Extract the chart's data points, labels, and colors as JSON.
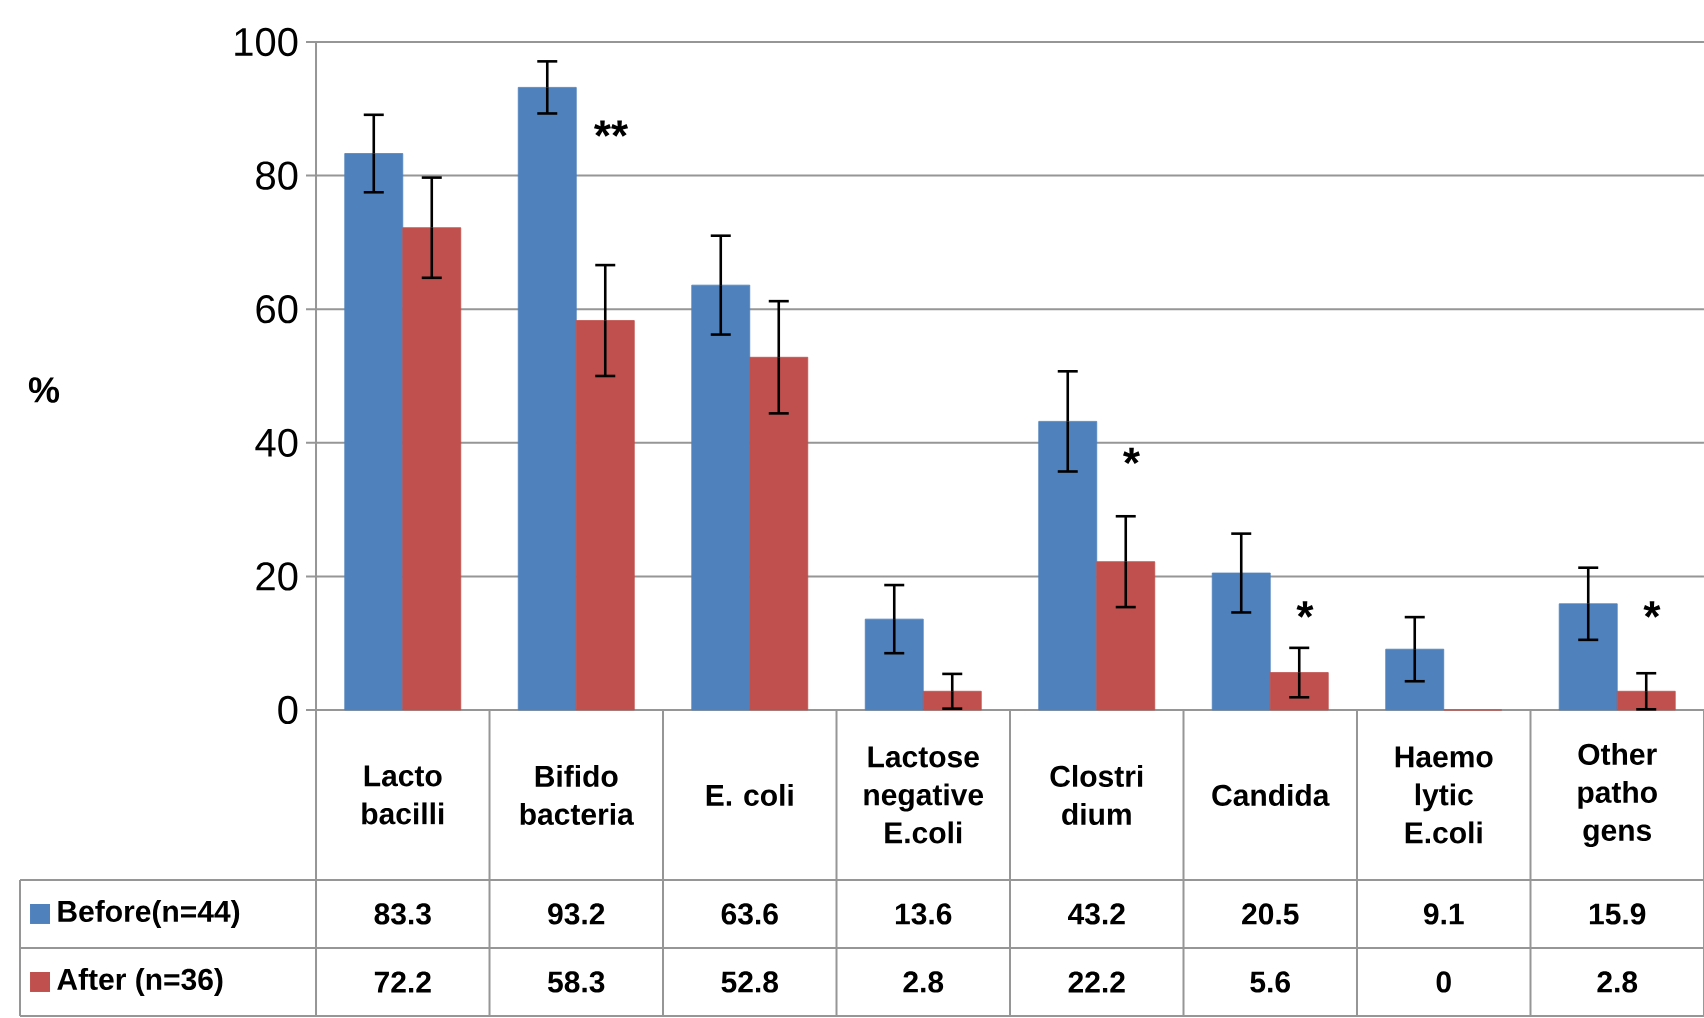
{
  "chart_data": {
    "type": "bar",
    "ylabel": "%",
    "categories": [
      "Lacto bacilli",
      "Bifido bacteria",
      "E. coli",
      "Lactose negative E.coli",
      "Clostri dium",
      "Candida",
      "Haemo lytic E.coli",
      "Other patho gens"
    ],
    "series": [
      {
        "name": "Before(n=44)",
        "color": "#4f81bd",
        "values": [
          83.3,
          93.2,
          63.6,
          13.6,
          43.2,
          20.5,
          9.1,
          15.9
        ],
        "errors": [
          5.8,
          3.9,
          7.4,
          5.1,
          7.5,
          5.9,
          4.8,
          5.4
        ]
      },
      {
        "name": "After (n=36)",
        "color": "#c0504d",
        "values": [
          72.2,
          58.3,
          52.8,
          2.8,
          22.2,
          5.6,
          0,
          2.8
        ],
        "errors": [
          7.5,
          8.3,
          8.4,
          2.6,
          6.8,
          3.7,
          null,
          2.7
        ]
      }
    ],
    "ylim": [
      0,
      100
    ],
    "yticks": [
      0,
      20,
      40,
      60,
      80,
      100
    ],
    "grid": "y",
    "legend": "bottom",
    "data_labels": true,
    "annotations": [
      {
        "text": "**",
        "x": "Bifido bacteria",
        "y": 86
      },
      {
        "text": "*",
        "x": "Clostri dium",
        "y": 37
      },
      {
        "text": "*",
        "x": "Candida",
        "y": 14
      },
      {
        "text": "*",
        "x": "Other patho gens",
        "y": 14
      }
    ]
  }
}
